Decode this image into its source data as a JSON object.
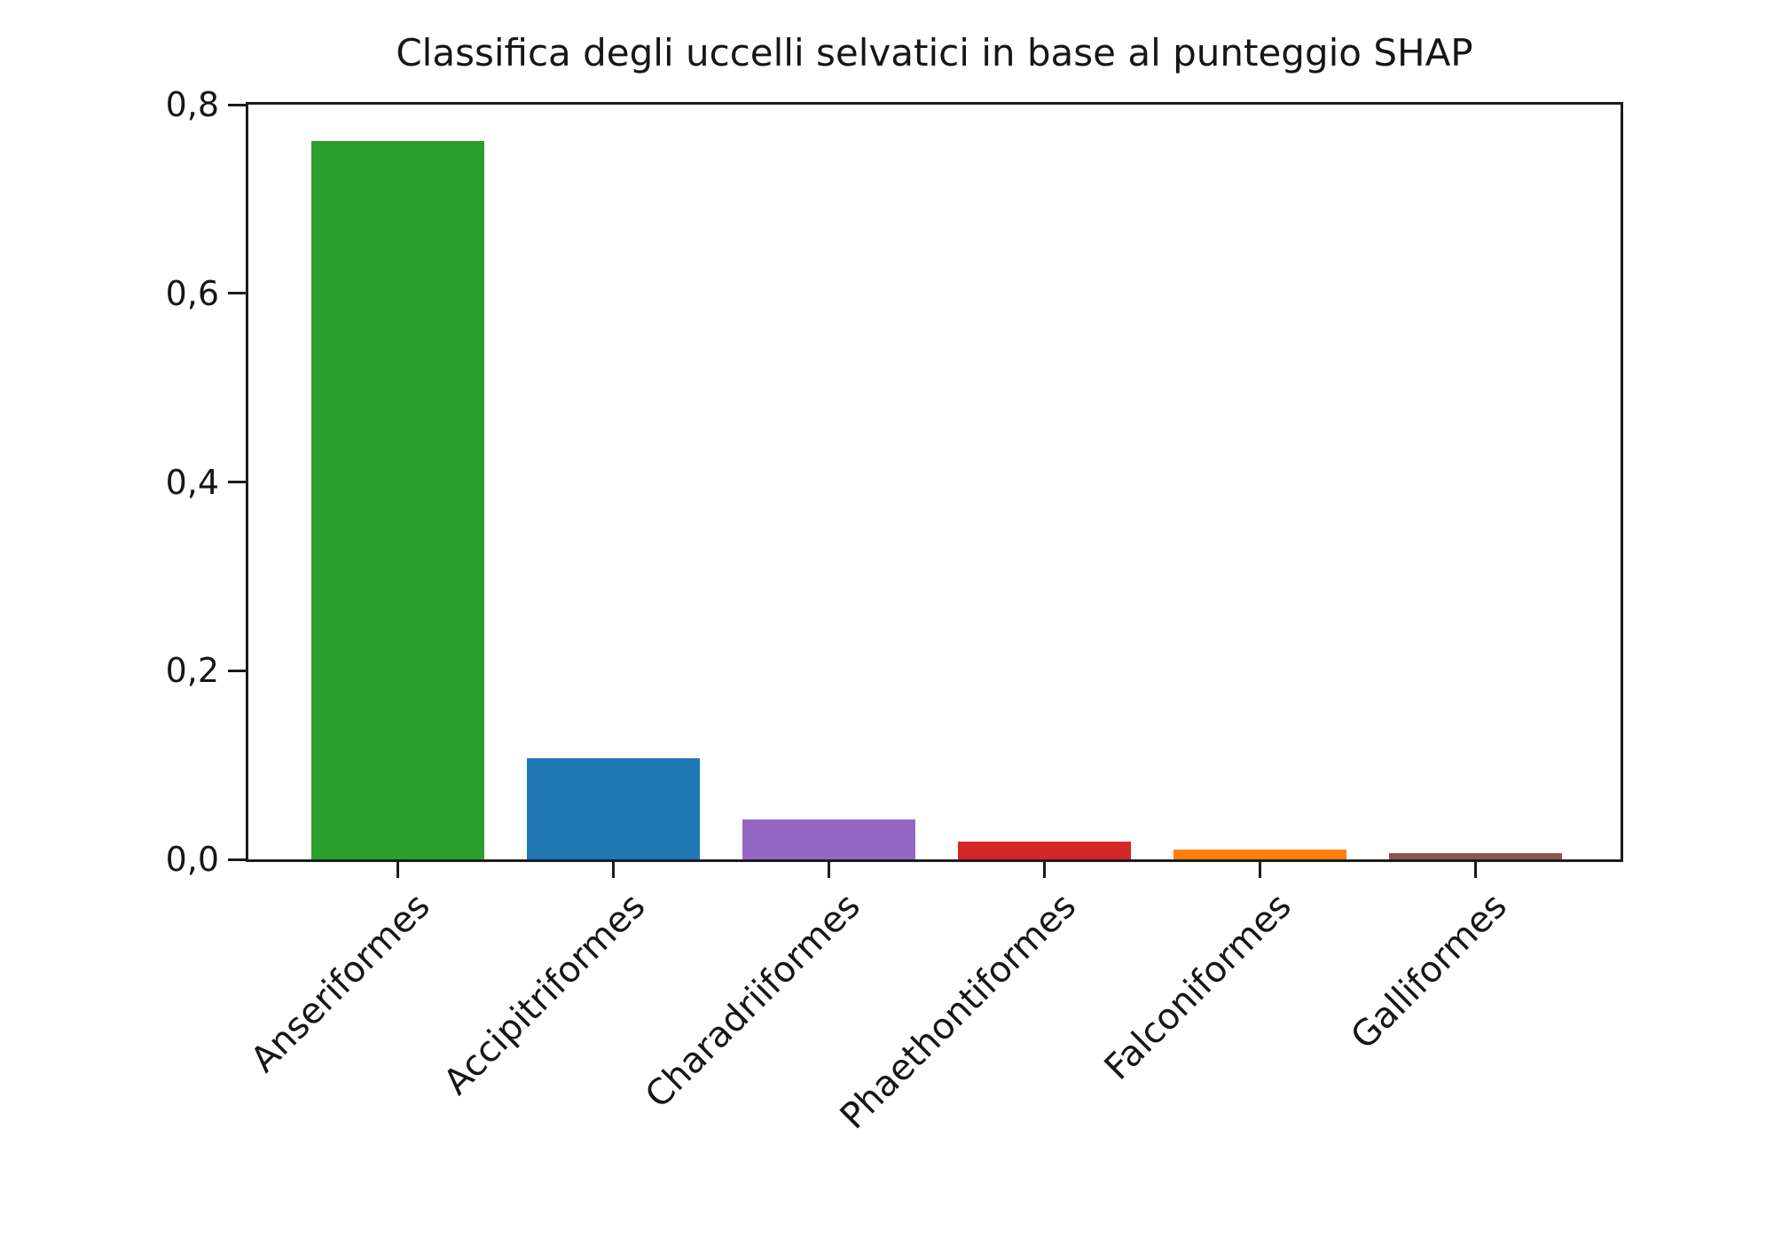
{
  "chart_data": {
    "type": "bar",
    "title": "Classifica degli uccelli selvatici in base al punteggio SHAP",
    "categories": [
      "Anseriformes",
      "Accipitriformes",
      "Charadriiformes",
      "Phaethontiformes",
      "Falconiformes",
      "Galliformes"
    ],
    "values": [
      0.761,
      0.107,
      0.042,
      0.019,
      0.01,
      0.007
    ],
    "bar_colors": [
      "#2ca02c",
      "#1f77b4",
      "#9467c4",
      "#d62728",
      "#ff7f0e",
      "#8c564b"
    ],
    "xlabel": "",
    "ylabel": "",
    "ylim": [
      0,
      0.8
    ],
    "ytick_labels": [
      "0,0",
      "0,2",
      "0,4",
      "0,6",
      "0,8"
    ],
    "ytick_values": [
      0,
      0.2,
      0.4,
      0.6,
      0.8
    ],
    "grid": false,
    "legend_position": "none",
    "x_tick_rotation_deg": 45,
    "decimal_separator": ",",
    "axis_color": "#1c1c1c",
    "background_color": "#ffffff"
  }
}
